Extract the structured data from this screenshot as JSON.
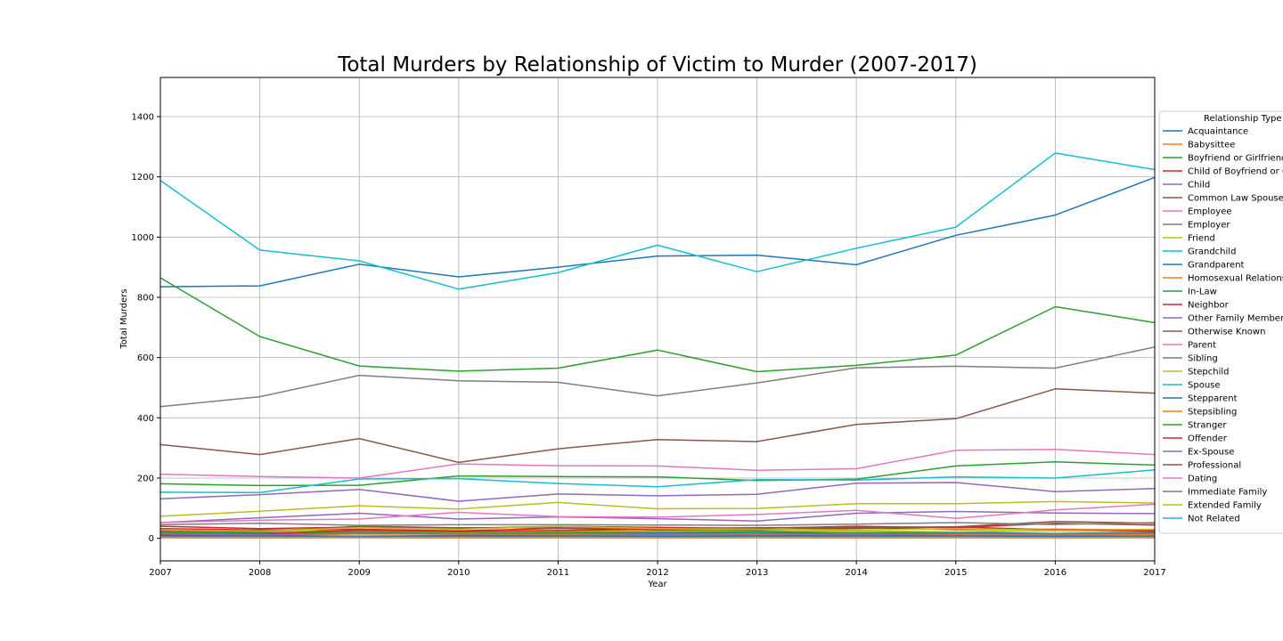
{
  "chart_data": {
    "type": "line",
    "title": "Total Murders by Relationship of Victim to Murder (2007-2017)",
    "xlabel": "Year",
    "ylabel": "Total Murders",
    "x": [
      2007,
      2008,
      2009,
      2010,
      2011,
      2012,
      2013,
      2014,
      2015,
      2016,
      2017
    ],
    "xlim": [
      2007,
      2017
    ],
    "ylim": [
      -75,
      1530
    ],
    "yticks": [
      0,
      200,
      400,
      600,
      800,
      1000,
      1200,
      1400
    ],
    "grid": true,
    "legend": {
      "title": "Relationship Type",
      "placement": "right"
    },
    "series": [
      {
        "name": "Acquaintance",
        "color": "#1f77b4",
        "values": [
          835,
          838,
          910,
          868,
          900,
          937,
          940,
          908,
          1006,
          1073,
          1198
        ]
      },
      {
        "name": "Babysittee",
        "color": "#ff7f0e",
        "values": [
          4,
          3,
          5,
          3,
          4,
          3,
          4,
          3,
          5,
          4,
          4
        ]
      },
      {
        "name": "Boyfriend or Girlfriend",
        "color": "#2ca02c",
        "values": [
          181,
          175,
          176,
          207,
          205,
          204,
          192,
          196,
          240,
          254,
          243
        ]
      },
      {
        "name": "Child of Boyfriend or Girlfriend",
        "color": "#d62728",
        "values": [
          32,
          28,
          30,
          25,
          33,
          28,
          27,
          36,
          29,
          30,
          28
        ]
      },
      {
        "name": "Child",
        "color": "#9467bd",
        "values": [
          131,
          145,
          162,
          123,
          147,
          141,
          146,
          183,
          185,
          155,
          165
        ]
      },
      {
        "name": "Common Law Spouse",
        "color": "#8c564b",
        "values": [
          20,
          18,
          24,
          18,
          20,
          18,
          16,
          14,
          17,
          15,
          20
        ]
      },
      {
        "name": "Employee",
        "color": "#e377c2",
        "values": [
          5,
          4,
          5,
          4,
          6,
          5,
          5,
          6,
          5,
          6,
          5
        ]
      },
      {
        "name": "Employer",
        "color": "#7f7f7f",
        "values": [
          8,
          7,
          7,
          6,
          7,
          6,
          7,
          6,
          8,
          7,
          6
        ]
      },
      {
        "name": "Friend",
        "color": "#bcbd22",
        "values": [
          73,
          90,
          108,
          97,
          119,
          98,
          99,
          115,
          115,
          122,
          117
        ]
      },
      {
        "name": "Grandchild",
        "color": "#17becf",
        "values": [
          16,
          18,
          14,
          15,
          17,
          16,
          18,
          15,
          17,
          16,
          19
        ]
      },
      {
        "name": "Grandparent",
        "color": "#1f77b4",
        "values": [
          22,
          20,
          16,
          18,
          25,
          20,
          22,
          18,
          20,
          16,
          20
        ]
      },
      {
        "name": "Homosexual Relationship",
        "color": "#ff7f0e",
        "values": [
          12,
          10,
          14,
          13,
          12,
          11,
          10,
          12,
          11,
          10,
          13
        ]
      },
      {
        "name": "In-Law",
        "color": "#2ca02c",
        "values": [
          18,
          16,
          19,
          17,
          18,
          15,
          16,
          18,
          16,
          15,
          17
        ]
      },
      {
        "name": "Neighbor",
        "color": "#d62728",
        "values": [
          40,
          32,
          37,
          33,
          40,
          36,
          33,
          40,
          35,
          50,
          44
        ]
      },
      {
        "name": "Other Family Member",
        "color": "#9467bd",
        "values": [
          52,
          68,
          83,
          64,
          71,
          65,
          57,
          83,
          89,
          84,
          82
        ]
      },
      {
        "name": "Otherwise Known",
        "color": "#8c564b",
        "values": [
          311,
          278,
          331,
          252,
          297,
          328,
          321,
          378,
          397,
          496,
          482
        ]
      },
      {
        "name": "Parent",
        "color": "#e377c2",
        "values": [
          52,
          60,
          64,
          86,
          72,
          70,
          79,
          93,
          66,
          94,
          113
        ]
      },
      {
        "name": "Sibling",
        "color": "#7f7f7f",
        "values": [
          437,
          470,
          541,
          523,
          518,
          473,
          516,
          566,
          571,
          565,
          635
        ]
      },
      {
        "name": "Stepchild",
        "color": "#bcbd22",
        "values": [
          23,
          21,
          27,
          20,
          24,
          23,
          26,
          24,
          22,
          25,
          24
        ]
      },
      {
        "name": "Spouse",
        "color": "#17becf",
        "values": [
          153,
          152,
          197,
          198,
          182,
          171,
          195,
          193,
          204,
          200,
          227
        ]
      },
      {
        "name": "Stepparent",
        "color": "#1f77b4",
        "values": [
          8,
          9,
          7,
          9,
          8,
          7,
          8,
          9,
          8,
          7,
          8
        ]
      },
      {
        "name": "Stepsibling",
        "color": "#ff7f0e",
        "values": [
          3,
          2,
          3,
          2,
          3,
          2,
          3,
          2,
          3,
          2,
          3
        ]
      },
      {
        "name": "Stranger",
        "color": "#2ca02c",
        "values": [
          865,
          670,
          572,
          555,
          565,
          625,
          553,
          574,
          608,
          769,
          716
        ]
      },
      {
        "name": "Offender",
        "color": "#d62728",
        "values": [
          10,
          14,
          28,
          22,
          26,
          30,
          28,
          33,
          38,
          28,
          24
        ]
      },
      {
        "name": "Ex-Spouse",
        "color": "#9467bd",
        "values": [
          14,
          12,
          16,
          14,
          15,
          13,
          14,
          12,
          15,
          14,
          16
        ]
      },
      {
        "name": "Professional",
        "color": "#8c564b",
        "values": [
          24,
          22,
          40,
          35,
          35,
          33,
          35,
          36,
          38,
          56,
          50
        ]
      },
      {
        "name": "Dating",
        "color": "#e377c2",
        "values": [
          213,
          205,
          200,
          247,
          241,
          240,
          226,
          231,
          292,
          295,
          278
        ]
      },
      {
        "name": "Immediate Family",
        "color": "#7f7f7f",
        "values": [
          45,
          50,
          43,
          45,
          45,
          44,
          43,
          47,
          52,
          46,
          52
        ]
      },
      {
        "name": "Extended Family",
        "color": "#bcbd22",
        "values": [
          28,
          24,
          35,
          30,
          40,
          32,
          30,
          28,
          32,
          27,
          30
        ]
      },
      {
        "name": "Not Related",
        "color": "#17becf",
        "values": [
          1188,
          957,
          921,
          827,
          882,
          973,
          885,
          963,
          1033,
          1279,
          1224
        ]
      }
    ]
  }
}
